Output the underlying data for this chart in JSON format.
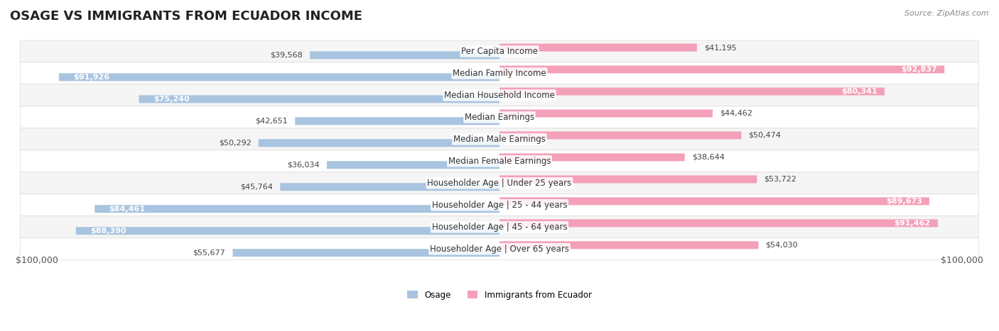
{
  "title": "OSAGE VS IMMIGRANTS FROM ECUADOR INCOME",
  "source": "Source: ZipAtlas.com",
  "categories": [
    "Per Capita Income",
    "Median Family Income",
    "Median Household Income",
    "Median Earnings",
    "Median Male Earnings",
    "Median Female Earnings",
    "Householder Age | Under 25 years",
    "Householder Age | 25 - 44 years",
    "Householder Age | 45 - 64 years",
    "Householder Age | Over 65 years"
  ],
  "osage_values": [
    39568,
    91926,
    75240,
    42651,
    50292,
    36034,
    45764,
    84461,
    88390,
    55677
  ],
  "ecuador_values": [
    41195,
    92837,
    80341,
    44462,
    50474,
    38644,
    53722,
    89673,
    91462,
    54030
  ],
  "osage_labels": [
    "$39,568",
    "$91,926",
    "$75,240",
    "$42,651",
    "$50,292",
    "$36,034",
    "$45,764",
    "$84,461",
    "$88,390",
    "$55,677"
  ],
  "ecuador_labels": [
    "$41,195",
    "$92,837",
    "$80,341",
    "$44,462",
    "$50,474",
    "$38,644",
    "$53,722",
    "$89,673",
    "$91,462",
    "$54,030"
  ],
  "max_value": 100000,
  "osage_color": "#a8c4e0",
  "osage_color_dark": "#6b9fc8",
  "ecuador_color": "#f4a0b8",
  "ecuador_color_dark": "#e8547a",
  "label_inside_threshold": 60000,
  "background_color": "#ffffff",
  "row_bg_color": "#f0f0f0",
  "row_alt_bg_color": "#ffffff",
  "xlabel": "$100,000",
  "xlabel_right": "$100,000",
  "legend_osage": "Osage",
  "legend_ecuador": "Immigrants from Ecuador",
  "title_fontsize": 13,
  "label_fontsize": 8.5,
  "axis_fontsize": 9
}
